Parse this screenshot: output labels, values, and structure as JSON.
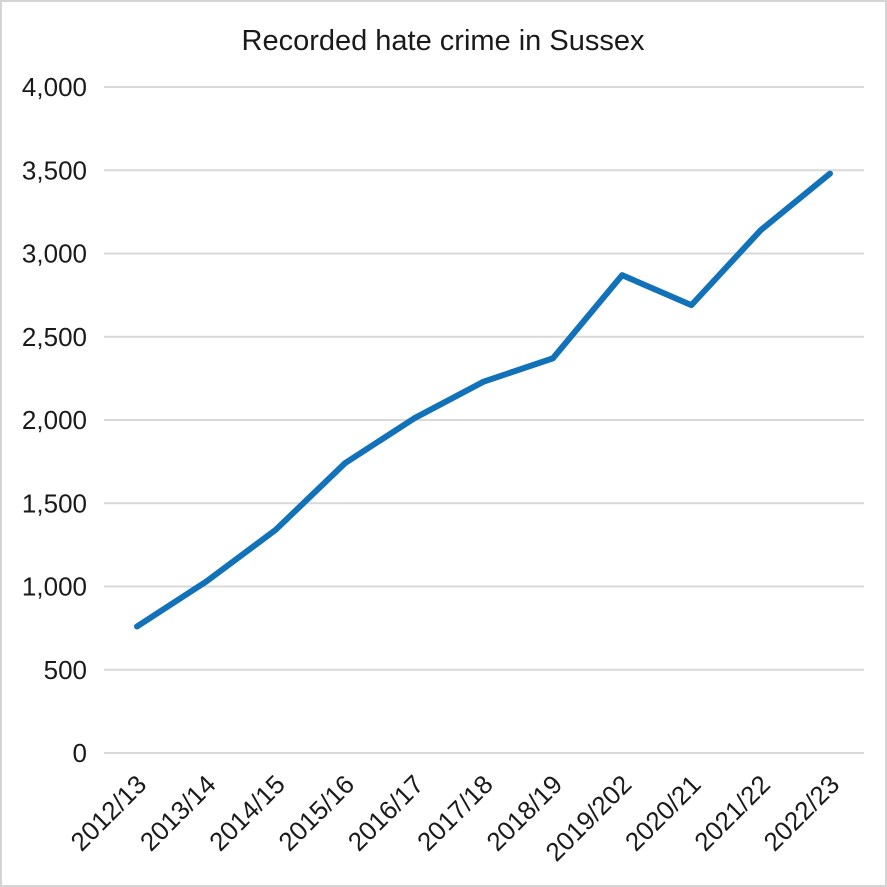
{
  "page": {
    "title": "Recorded hate crime in Sussex"
  },
  "chart_data": {
    "type": "line",
    "title": "Recorded hate crime in Sussex",
    "categories": [
      "2012/13",
      "2013/14",
      "2014/15",
      "2015/16",
      "2016/17",
      "2017/18",
      "2018/19",
      "2019/202",
      "2020/21",
      "2021/22",
      "2022/23"
    ],
    "values": [
      760,
      1030,
      1340,
      1740,
      2010,
      2230,
      2370,
      2870,
      2690,
      3140,
      3480
    ],
    "xlabel": "",
    "ylabel": "",
    "ylim": [
      0,
      4000
    ],
    "ytick_step": 500,
    "ytick_labels": [
      "0",
      "500",
      "1,000",
      "1,500",
      "2,000",
      "2,500",
      "3,000",
      "3,500",
      "4,000"
    ],
    "x_tick_rotation_degrees": 45,
    "grid": "horizontal",
    "legend": "none",
    "colors": {
      "line": "#1272b9",
      "grid": "#d9d9d9",
      "text": "#1a1a1a",
      "background": "#ffffff",
      "border": "#d4d4d4"
    }
  }
}
